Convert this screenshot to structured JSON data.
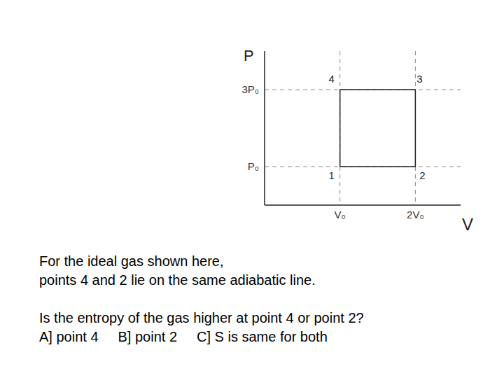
{
  "chart_data": {
    "type": "line",
    "x_label": "V",
    "y_label": "P",
    "x": [
      1,
      2,
      2,
      1,
      1
    ],
    "values": [
      1,
      1,
      3,
      3,
      1
    ],
    "point_labels": [
      "1",
      "2",
      "3",
      "4"
    ],
    "color": "#222222",
    "xlim": [
      0,
      2.6
    ],
    "ylim": [
      0,
      4
    ],
    "xticks": [
      {
        "value": 1,
        "label": "V₀"
      },
      {
        "value": 2,
        "label": "2V₀"
      }
    ],
    "yticks": [
      {
        "value": 1,
        "label": "P₀"
      },
      {
        "value": 3,
        "label": "3P₀"
      }
    ],
    "grid": true
  },
  "text": {
    "statement": [
      "For the ideal gas shown here,",
      "points 4 and 2 lie on the same adiabatic line."
    ],
    "question": "Is the entropy of the gas higher at point 4 or point 2?",
    "options": [
      "A] point 4",
      "B] point 2",
      "C] S is same for both"
    ]
  }
}
